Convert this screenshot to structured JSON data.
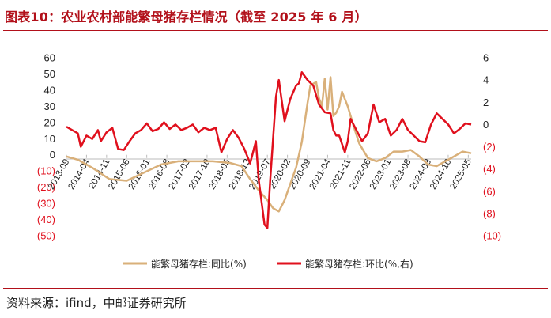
{
  "page": {
    "title": "图表10：农业农村部能繁母猪存栏情况（截至 2025 年 6 月）",
    "source": "资料来源：ifind，中邮证券研究所"
  },
  "colors": {
    "accent": "#b2101a",
    "yoy_series": "#d9b07a",
    "mom_series": "#e0101d",
    "negative_tick": "#e0101d"
  },
  "chart_data": {
    "type": "line",
    "left_axis": {
      "ylim": [
        -50,
        60
      ],
      "ticks": [
        60,
        50,
        40,
        30,
        20,
        10,
        0,
        -10,
        -20,
        -30,
        -40,
        -50
      ],
      "tick_labels": [
        "60",
        "50",
        "40",
        "30",
        "20",
        "10",
        "0",
        "(10)",
        "(20)",
        "(30)",
        "(40)",
        "(50)"
      ]
    },
    "right_axis": {
      "ylim": [
        -10,
        6
      ],
      "ticks": [
        6,
        4,
        2,
        0,
        -2,
        -4,
        -6,
        -8,
        -10
      ],
      "tick_labels": [
        "6",
        "4",
        "2",
        "0",
        "(2)",
        "(4)",
        "(6)",
        "(8)",
        "(10)"
      ]
    },
    "x_tick_labels": [
      "2013-09",
      "2014-04",
      "2014-11",
      "2015-06",
      "2016-01",
      "2016-08",
      "2017-03",
      "2017-10",
      "2018-05",
      "2018-12",
      "2019-07",
      "2020-02",
      "2020-09",
      "2021-04",
      "2021-11",
      "2022-06",
      "2023-01",
      "2023-08",
      "2024-03",
      "2024-10",
      "2025-05"
    ],
    "x_range": [
      "2013-09",
      "2025-06"
    ],
    "legend_position": "bottom",
    "series": [
      {
        "name": "能繁母猪存栏:同比(%)",
        "axis": "left",
        "points": [
          [
            "2013-09",
            -1
          ],
          [
            "2014-01",
            -3
          ],
          [
            "2014-06",
            -8
          ],
          [
            "2014-12",
            -15
          ],
          [
            "2015-06",
            -16
          ],
          [
            "2015-12",
            -11
          ],
          [
            "2016-06",
            -6
          ],
          [
            "2016-12",
            -4
          ],
          [
            "2017-06",
            -4
          ],
          [
            "2017-12",
            -4
          ],
          [
            "2018-06",
            -5
          ],
          [
            "2018-10",
            -7
          ],
          [
            "2019-01",
            -15
          ],
          [
            "2019-04",
            -22
          ],
          [
            "2019-07",
            -28
          ],
          [
            "2019-09",
            -33
          ],
          [
            "2019-11",
            -35
          ],
          [
            "2020-01",
            -28
          ],
          [
            "2020-03",
            -18
          ],
          [
            "2020-05",
            -8
          ],
          [
            "2020-07",
            8
          ],
          [
            "2020-09",
            32
          ],
          [
            "2020-10",
            43
          ],
          [
            "2020-12",
            45
          ],
          [
            "2021-01",
            35
          ],
          [
            "2021-02",
            30
          ],
          [
            "2021-03",
            47
          ],
          [
            "2021-04",
            28
          ],
          [
            "2021-05",
            48
          ],
          [
            "2021-06",
            24
          ],
          [
            "2021-07",
            26
          ],
          [
            "2021-08",
            30
          ],
          [
            "2021-09",
            39
          ],
          [
            "2021-11",
            30
          ],
          [
            "2022-01",
            18
          ],
          [
            "2022-03",
            7
          ],
          [
            "2022-06",
            -2
          ],
          [
            "2022-09",
            -4
          ],
          [
            "2022-12",
            -2
          ],
          [
            "2023-03",
            2
          ],
          [
            "2023-06",
            2
          ],
          [
            "2023-09",
            3
          ],
          [
            "2023-12",
            -1
          ],
          [
            "2024-03",
            -6
          ],
          [
            "2024-06",
            -7
          ],
          [
            "2024-09",
            -4
          ],
          [
            "2024-12",
            -1
          ],
          [
            "2025-03",
            2
          ],
          [
            "2025-06",
            1
          ]
        ]
      },
      {
        "name": "能繁母猪存栏:环比(%,右)",
        "axis": "right",
        "points": [
          [
            "2013-09",
            -0.2
          ],
          [
            "2013-11",
            -0.5
          ],
          [
            "2014-01",
            -0.8
          ],
          [
            "2014-02",
            -2.0
          ],
          [
            "2014-04",
            -1.0
          ],
          [
            "2014-06",
            -1.3
          ],
          [
            "2014-08",
            -0.5
          ],
          [
            "2014-09",
            -1.5
          ],
          [
            "2014-11",
            -0.7
          ],
          [
            "2015-01",
            -0.3
          ],
          [
            "2015-03",
            -2.2
          ],
          [
            "2015-05",
            -2.3
          ],
          [
            "2015-07",
            -1.5
          ],
          [
            "2015-09",
            -0.8
          ],
          [
            "2015-11",
            -0.5
          ],
          [
            "2016-01",
            0.1
          ],
          [
            "2016-03",
            -0.6
          ],
          [
            "2016-05",
            -0.4
          ],
          [
            "2016-07",
            0.2
          ],
          [
            "2016-09",
            -0.4
          ],
          [
            "2016-11",
            0.0
          ],
          [
            "2017-01",
            -0.5
          ],
          [
            "2017-03",
            -0.3
          ],
          [
            "2017-05",
            0.0
          ],
          [
            "2017-07",
            -0.7
          ],
          [
            "2017-09",
            -0.3
          ],
          [
            "2017-11",
            -0.5
          ],
          [
            "2018-01",
            -0.3
          ],
          [
            "2018-03",
            -2.5
          ],
          [
            "2018-05",
            -1.3
          ],
          [
            "2018-07",
            -0.5
          ],
          [
            "2018-09",
            -1.2
          ],
          [
            "2018-11",
            -2.2
          ],
          [
            "2019-01",
            -3.5
          ],
          [
            "2019-03",
            -1.5
          ],
          [
            "2019-04",
            -5.0
          ],
          [
            "2019-06",
            -9.0
          ],
          [
            "2019-07",
            -9.3
          ],
          [
            "2019-08",
            -5.0
          ],
          [
            "2019-10",
            2.5
          ],
          [
            "2019-11",
            4.0
          ],
          [
            "2020-01",
            0.3
          ],
          [
            "2020-03",
            2.3
          ],
          [
            "2020-05",
            3.5
          ],
          [
            "2020-06",
            3.7
          ],
          [
            "2020-07",
            4.7
          ],
          [
            "2020-09",
            4.0
          ],
          [
            "2020-11",
            3.5
          ],
          [
            "2021-01",
            1.8
          ],
          [
            "2021-03",
            1.1
          ],
          [
            "2021-05",
            1.0
          ],
          [
            "2021-06",
            -0.5
          ],
          [
            "2021-07",
            -1.0
          ],
          [
            "2021-08",
            -1.0
          ],
          [
            "2021-10",
            -2.5
          ],
          [
            "2021-11",
            -1.5
          ],
          [
            "2021-12",
            0.5
          ],
          [
            "2022-02",
            -0.5
          ],
          [
            "2022-04",
            -1.5
          ],
          [
            "2022-06",
            -0.8
          ],
          [
            "2022-08",
            1.8
          ],
          [
            "2022-10",
            0.2
          ],
          [
            "2022-12",
            0.5
          ],
          [
            "2023-02",
            -1.0
          ],
          [
            "2023-04",
            -0.5
          ],
          [
            "2023-06",
            0.5
          ],
          [
            "2023-08",
            -0.5
          ],
          [
            "2023-10",
            -1.0
          ],
          [
            "2023-12",
            -1.5
          ],
          [
            "2024-02",
            -1.6
          ],
          [
            "2024-04",
            0.0
          ],
          [
            "2024-06",
            1.0
          ],
          [
            "2024-08",
            0.5
          ],
          [
            "2024-10",
            0.0
          ],
          [
            "2024-12",
            -0.8
          ],
          [
            "2025-02",
            -0.4
          ],
          [
            "2025-04",
            0.1
          ],
          [
            "2025-06",
            0.0
          ]
        ]
      }
    ]
  }
}
